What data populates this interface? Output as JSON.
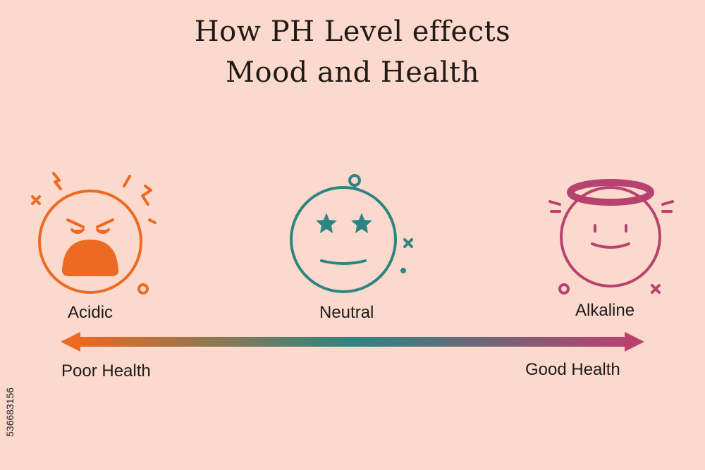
{
  "title": {
    "line1": "How PH Level effects",
    "line2": "Mood and Health"
  },
  "states": [
    {
      "label": "Acidic",
      "icon": "angry-face-icon",
      "color": "#ec6a22"
    },
    {
      "label": "Neutral",
      "icon": "star-eyes-face-icon",
      "color": "#2d8582"
    },
    {
      "label": "Alkaline",
      "icon": "angel-face-icon",
      "color": "#b8426f"
    }
  ],
  "scale": {
    "left_label": "Poor Health",
    "right_label": "Good Health",
    "gradient": [
      "#ec6a22",
      "#2d8582",
      "#b8426f"
    ]
  },
  "stock_id": "536683156"
}
